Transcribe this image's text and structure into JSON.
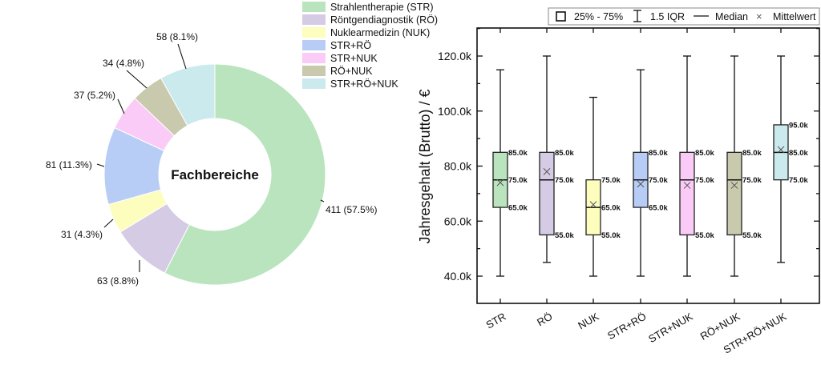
{
  "chart_data": [
    {
      "type": "pie",
      "variant": "donut",
      "title": "Fachbereiche",
      "legend_position": "top-right",
      "slices": [
        {
          "key": "STR",
          "label": "Strahlentherapie (STR)",
          "value": 411,
          "percent": 57.5,
          "data_label": "411 (57.5%)",
          "color": "#b9e4bd"
        },
        {
          "key": "RÖ",
          "label": "Röntgendiagnostik (RÖ)",
          "value": 63,
          "percent": 8.8,
          "data_label": "63 (8.8%)",
          "color": "#d5cbe4"
        },
        {
          "key": "NUK",
          "label": "Nuklearmedizin (NUK)",
          "value": 31,
          "percent": 4.3,
          "data_label": "31 (4.3%)",
          "color": "#fdfdbd"
        },
        {
          "key": "STR+RÖ",
          "label": "STR+RÖ",
          "value": 81,
          "percent": 11.3,
          "data_label": "81 (11.3%)",
          "color": "#b8cdf5"
        },
        {
          "key": "STR+NUK",
          "label": "STR+NUK",
          "value": 37,
          "percent": 5.2,
          "data_label": "37 (5.2%)",
          "color": "#fbcbf7"
        },
        {
          "key": "RÖ+NUK",
          "label": "RÖ+NUK",
          "value": 34,
          "percent": 4.8,
          "data_label": "34 (4.8%)",
          "color": "#c8c9ad"
        },
        {
          "key": "STR+RÖ+NUK",
          "label": "STR+RÖ+NUK",
          "value": 58,
          "percent": 8.1,
          "data_label": "58 (8.1%)",
          "color": "#cbeaee"
        }
      ]
    },
    {
      "type": "box",
      "title": "",
      "xlabel": "",
      "ylabel": "Jahresgehalt (Brutto) / €",
      "ylim": [
        30000,
        130000
      ],
      "yticks": [
        40000,
        60000,
        80000,
        100000,
        120000
      ],
      "ytick_labels": [
        "40.0k",
        "60.0k",
        "80.0k",
        "100.0k",
        "120.0k"
      ],
      "grid": false,
      "legend_position": "top",
      "legend": {
        "box": "25% - 75%",
        "whisker": "1.5 IQR",
        "median": "Median",
        "mean": "Mittelwert"
      },
      "categories": [
        "STR",
        "RÖ",
        "NUK",
        "STR+RÖ",
        "STR+NUK",
        "RÖ+NUK",
        "STR+RÖ+NUK"
      ],
      "boxes": [
        {
          "category": "STR",
          "whisker_low": 40000,
          "q1": 65000,
          "median": 75000,
          "q3": 85000,
          "whisker_high": 115000,
          "mean": 74000,
          "labels": {
            "q1": "65.0k",
            "median": "75.0k",
            "q3": "85.0k"
          },
          "color": "#b9e4bd"
        },
        {
          "category": "RÖ",
          "whisker_low": 45000,
          "q1": 55000,
          "median": 75000,
          "q3": 85000,
          "whisker_high": 120000,
          "mean": 78000,
          "labels": {
            "q1": "55.0k",
            "median": "75.0k",
            "q3": "85.0k"
          },
          "color": "#d5cbe4"
        },
        {
          "category": "NUK",
          "whisker_low": 40000,
          "q1": 55000,
          "median": 65000,
          "q3": 75000,
          "whisker_high": 105000,
          "mean": 66000,
          "labels": {
            "q1": "55.0k",
            "median": "65.0k",
            "q3": "75.0k"
          },
          "color": "#fdfdbd"
        },
        {
          "category": "STR+RÖ",
          "whisker_low": 40000,
          "q1": 65000,
          "median": 75000,
          "q3": 85000,
          "whisker_high": 115000,
          "mean": 73500,
          "labels": {
            "q1": "65.0k",
            "median": "75.0k",
            "q3": "85.0k"
          },
          "color": "#b8cdf5"
        },
        {
          "category": "STR+NUK",
          "whisker_low": 40000,
          "q1": 55000,
          "median": 75000,
          "q3": 85000,
          "whisker_high": 120000,
          "mean": 73000,
          "labels": {
            "q1": "55.0k",
            "median": "75.0k",
            "q3": "85.0k"
          },
          "color": "#fbcbf7"
        },
        {
          "category": "RÖ+NUK",
          "whisker_low": 40000,
          "q1": 55000,
          "median": 75000,
          "q3": 85000,
          "whisker_high": 120000,
          "mean": 73000,
          "labels": {
            "q1": "55.0k",
            "median": "75.0k",
            "q3": "85.0k"
          },
          "color": "#c8c9ad"
        },
        {
          "category": "STR+RÖ+NUK",
          "whisker_low": 45000,
          "q1": 75000,
          "median": 85000,
          "q3": 95000,
          "whisker_high": 120000,
          "mean": 86000,
          "labels": {
            "q1": "75.0k",
            "median": "85.0k",
            "q3": "95.0k"
          },
          "color": "#cbeaee"
        }
      ]
    }
  ]
}
